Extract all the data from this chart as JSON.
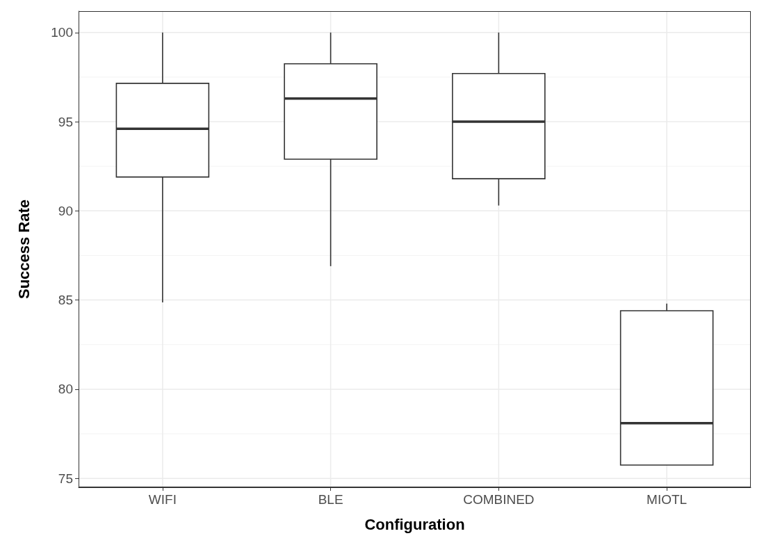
{
  "chart_data": {
    "type": "box",
    "xlabel": "Configuration",
    "ylabel": "Success Rate",
    "categories": [
      "WIFI",
      "BLE",
      "COMBINED",
      "MIOTL"
    ],
    "boxes": [
      {
        "low": 84.87,
        "q1": 91.9,
        "median": 94.6,
        "q3": 97.15,
        "high": 100
      },
      {
        "low": 86.9,
        "q1": 92.9,
        "median": 96.3,
        "q3": 98.25,
        "high": 100
      },
      {
        "low": 90.3,
        "q1": 91.8,
        "median": 95.0,
        "q3": 97.7,
        "high": 100
      },
      {
        "low": 75.75,
        "q1": 75.75,
        "median": 78.1,
        "q3": 84.4,
        "high": 84.8
      }
    ],
    "ylim": [
      74.5,
      101.2
    ],
    "yticks": [
      75,
      {
        "value": 77.5,
        "label": null
      },
      80,
      {
        "value": 82.5,
        "label": null
      },
      85,
      {
        "value": 87.5,
        "label": null
      },
      90,
      {
        "value": 92.5,
        "label": null
      },
      95,
      {
        "value": 97.5,
        "label": null
      },
      100
    ],
    "grid": true
  }
}
